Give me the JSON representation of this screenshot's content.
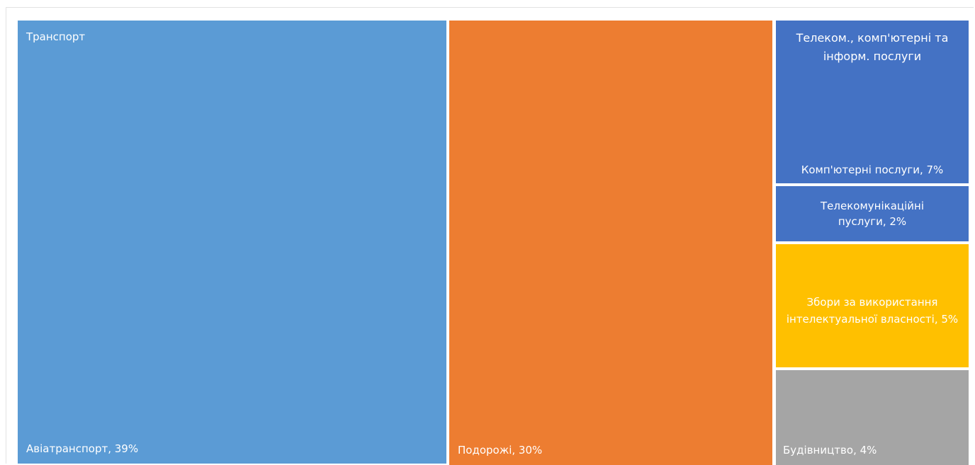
{
  "chart_data": {
    "type": "treemap",
    "groups": [
      {
        "name": "Транспорт",
        "color": "#5b9bd5",
        "items": [
          {
            "label": "Авіатранспорт, 39%",
            "value": 39
          }
        ]
      },
      {
        "name": "",
        "color": "#ed7d31",
        "items": [
          {
            "label": "Подорожі, 30%",
            "value": 30
          }
        ]
      },
      {
        "name": "Телеком., комп'ютерні та інформ. послуги",
        "color": "#4472c4",
        "items": [
          {
            "label": "Комп'ютерні послуги, 7%",
            "value": 7
          },
          {
            "label": "Телекомунікаційні пуслуги, 2%",
            "value": 2
          }
        ]
      },
      {
        "name": "",
        "color": "#ffc000",
        "items": [
          {
            "label": "Збори за використання інтелектуальної власності, 5%",
            "value": 5
          }
        ]
      },
      {
        "name": "",
        "color": "#a5a5a5",
        "items": [
          {
            "label": "Будівництво, 4%",
            "value": 4
          }
        ]
      }
    ]
  }
}
